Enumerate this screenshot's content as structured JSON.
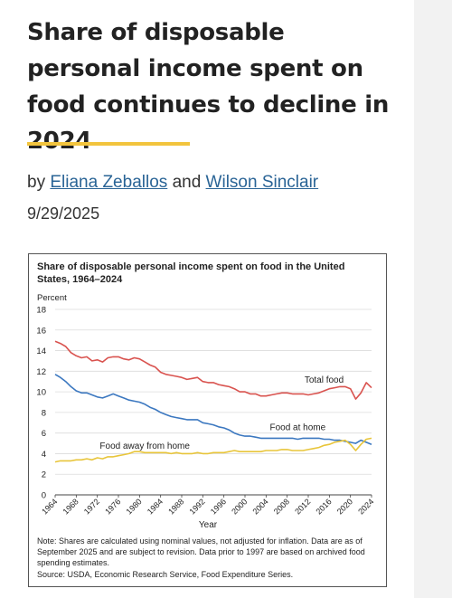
{
  "article": {
    "headline": "Share of disposable personal income spent on food continues to decline in 2024",
    "byline_prefix": "by",
    "author_1": "Eliana Zeballos",
    "byline_and": "and",
    "author_2": "Wilson Sinclair",
    "date": "9/29/2025",
    "accent_color": "#f2c43d",
    "link_color": "#2a6496"
  },
  "figure": {
    "title": "Share of disposable personal income spent on food in the United States, 1964–2024",
    "note": "Note: Shares are calculated using nominal values, not adjusted for inflation. Data are as of September 2025 and are subject to revision. Data prior to 1997 are based on archived food spending estimates.",
    "source": "Source: USDA, Economic Research Service, Food Expenditure Series."
  },
  "chart_data": {
    "type": "line",
    "ylabel": "Percent",
    "xlabel": "Year",
    "ylim": [
      0,
      18
    ],
    "xlim": [
      1964,
      2024
    ],
    "yticks": [
      0,
      2,
      4,
      6,
      8,
      10,
      12,
      14,
      16,
      18
    ],
    "xticks": [
      1964,
      1968,
      1972,
      1976,
      1980,
      1984,
      1988,
      1992,
      1996,
      2000,
      2004,
      2008,
      2012,
      2016,
      2020,
      2024
    ],
    "grid": true,
    "x": [
      1964,
      1965,
      1966,
      1967,
      1968,
      1969,
      1970,
      1971,
      1972,
      1973,
      1974,
      1975,
      1976,
      1977,
      1978,
      1979,
      1980,
      1981,
      1982,
      1983,
      1984,
      1985,
      1986,
      1987,
      1988,
      1989,
      1990,
      1991,
      1992,
      1993,
      1994,
      1995,
      1996,
      1997,
      1998,
      1999,
      2000,
      2001,
      2002,
      2003,
      2004,
      2005,
      2006,
      2007,
      2008,
      2009,
      2010,
      2011,
      2012,
      2013,
      2014,
      2015,
      2016,
      2017,
      2018,
      2019,
      2020,
      2021,
      2022,
      2023,
      2024
    ],
    "series": [
      {
        "name": "Total food",
        "color": "#d9534f",
        "values": [
          14.9,
          14.7,
          14.4,
          13.8,
          13.5,
          13.3,
          13.4,
          13.0,
          13.1,
          12.9,
          13.3,
          13.4,
          13.4,
          13.2,
          13.1,
          13.3,
          13.2,
          12.9,
          12.6,
          12.4,
          11.9,
          11.7,
          11.6,
          11.5,
          11.4,
          11.2,
          11.3,
          11.4,
          11.0,
          10.9,
          10.9,
          10.7,
          10.6,
          10.5,
          10.3,
          10.0,
          10.0,
          9.8,
          9.8,
          9.6,
          9.6,
          9.7,
          9.8,
          9.9,
          9.9,
          9.8,
          9.8,
          9.8,
          9.7,
          9.8,
          9.9,
          10.1,
          10.3,
          10.4,
          10.5,
          10.5,
          10.3,
          9.3,
          9.9,
          10.9,
          10.4
        ],
        "label": "Total food"
      },
      {
        "name": "Food at home",
        "color": "#3c78c0",
        "values": [
          11.7,
          11.4,
          11.0,
          10.5,
          10.1,
          9.9,
          9.9,
          9.7,
          9.5,
          9.4,
          9.6,
          9.8,
          9.6,
          9.4,
          9.2,
          9.1,
          9.0,
          8.8,
          8.5,
          8.3,
          8.0,
          7.8,
          7.6,
          7.5,
          7.4,
          7.3,
          7.3,
          7.3,
          7.0,
          6.9,
          6.8,
          6.6,
          6.5,
          6.3,
          6.0,
          5.8,
          5.7,
          5.7,
          5.6,
          5.5,
          5.5,
          5.5,
          5.5,
          5.5,
          5.5,
          5.5,
          5.4,
          5.5,
          5.5,
          5.5,
          5.5,
          5.4,
          5.4,
          5.3,
          5.3,
          5.2,
          5.1,
          5.0,
          5.3,
          5.1,
          4.9
        ],
        "label": "Food at home"
      },
      {
        "name": "Food away from home",
        "color": "#e8c53a",
        "values": [
          3.2,
          3.3,
          3.3,
          3.3,
          3.4,
          3.4,
          3.5,
          3.4,
          3.6,
          3.5,
          3.7,
          3.7,
          3.8,
          3.9,
          4.0,
          4.2,
          4.2,
          4.1,
          4.1,
          4.1,
          4.1,
          4.1,
          4.0,
          4.1,
          4.0,
          4.0,
          4.0,
          4.1,
          4.0,
          4.0,
          4.1,
          4.1,
          4.1,
          4.2,
          4.3,
          4.2,
          4.2,
          4.2,
          4.2,
          4.2,
          4.3,
          4.3,
          4.3,
          4.4,
          4.4,
          4.3,
          4.3,
          4.3,
          4.4,
          4.5,
          4.6,
          4.8,
          4.9,
          5.1,
          5.2,
          5.3,
          4.9,
          4.3,
          4.9,
          5.4,
          5.5
        ],
        "label": "Food away from home"
      }
    ]
  }
}
